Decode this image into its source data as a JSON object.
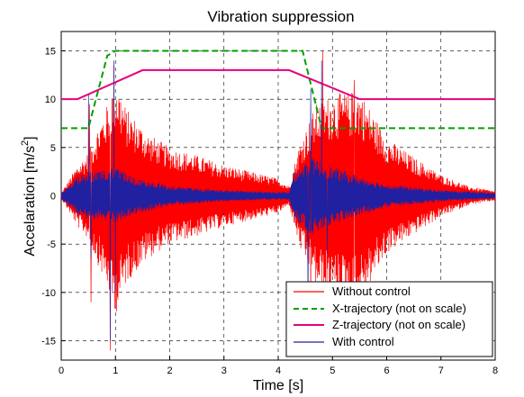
{
  "chart_data": {
    "type": "line",
    "title": "Vibration suppression",
    "xlabel": "Time [s]",
    "ylabel_base": "Accelaration [m/s",
    "ylabel_sup": "2",
    "ylabel_end": "]",
    "xlim": [
      0,
      8
    ],
    "ylim": [
      -17,
      17
    ],
    "xticks": [
      0,
      1,
      2,
      3,
      4,
      5,
      6,
      7,
      8
    ],
    "yticks": [
      -15,
      -10,
      -5,
      0,
      5,
      10,
      15
    ],
    "grid": true,
    "legend_position": "bottom-right",
    "series": [
      {
        "name": "Without control",
        "color": "#ff0000",
        "style": "solid",
        "kind": "oscillation",
        "envelope": [
          [
            0.0,
            0.3
          ],
          [
            0.3,
            3.2
          ],
          [
            0.5,
            4.5
          ],
          [
            0.7,
            7.5
          ],
          [
            0.85,
            9.5
          ],
          [
            1.0,
            12.5
          ],
          [
            1.2,
            9.0
          ],
          [
            1.6,
            6.5
          ],
          [
            2.0,
            5.0
          ],
          [
            2.5,
            4.2
          ],
          [
            3.0,
            3.2
          ],
          [
            3.5,
            2.5
          ],
          [
            4.0,
            1.8
          ],
          [
            4.2,
            1.0
          ],
          [
            4.4,
            5.5
          ],
          [
            4.7,
            9.5
          ],
          [
            5.0,
            10.5
          ],
          [
            5.5,
            11.0
          ],
          [
            6.0,
            6.0
          ],
          [
            6.5,
            4.0
          ],
          [
            7.0,
            2.2
          ],
          [
            7.5,
            1.0
          ],
          [
            8.0,
            0.5
          ]
        ],
        "spikes": [
          [
            0.52,
            9.5
          ],
          [
            0.55,
            -11.0
          ],
          [
            0.9,
            -16.0
          ],
          [
            0.97,
            13.5
          ],
          [
            1.0,
            -11.5
          ],
          [
            4.6,
            -15.5
          ],
          [
            4.82,
            15.0
          ],
          [
            5.4,
            12.0
          ]
        ]
      },
      {
        "name": "X-trajectory (not on scale)",
        "color": "#00a000",
        "style": "dashed",
        "x": [
          0.0,
          0.25,
          0.5,
          0.85,
          1.0,
          4.45,
          4.8,
          8.0
        ],
        "y": [
          7.0,
          7.0,
          7.0,
          14.5,
          15.0,
          15.0,
          7.0,
          7.0
        ]
      },
      {
        "name": "Z-trajectory (not on scale)",
        "color": "#e6007e",
        "style": "solid",
        "x": [
          0.0,
          0.3,
          1.5,
          4.2,
          5.5,
          8.0
        ],
        "y": [
          10.0,
          10.0,
          13.0,
          13.0,
          10.0,
          10.0
        ]
      },
      {
        "name": "With control",
        "color": "#2020a0",
        "style": "solid",
        "kind": "oscillation",
        "envelope": [
          [
            0.0,
            0.3
          ],
          [
            0.3,
            2.0
          ],
          [
            0.5,
            2.5
          ],
          [
            0.7,
            2.5
          ],
          [
            1.0,
            3.0
          ],
          [
            1.3,
            2.0
          ],
          [
            2.0,
            1.0
          ],
          [
            3.0,
            0.6
          ],
          [
            4.0,
            0.4
          ],
          [
            4.2,
            0.4
          ],
          [
            4.3,
            2.5
          ],
          [
            4.6,
            4.0
          ],
          [
            5.0,
            3.0
          ],
          [
            5.5,
            2.0
          ],
          [
            6.0,
            1.2
          ],
          [
            7.0,
            0.6
          ],
          [
            8.0,
            0.3
          ]
        ],
        "spikes": [
          [
            0.5,
            10.5
          ],
          [
            0.55,
            -6.5
          ],
          [
            0.9,
            -15.0
          ],
          [
            0.97,
            14.0
          ],
          [
            1.0,
            -10.0
          ],
          [
            4.55,
            -14.0
          ],
          [
            4.6,
            11.0
          ],
          [
            4.8,
            14.0
          ],
          [
            4.9,
            -6.0
          ]
        ]
      }
    ]
  }
}
